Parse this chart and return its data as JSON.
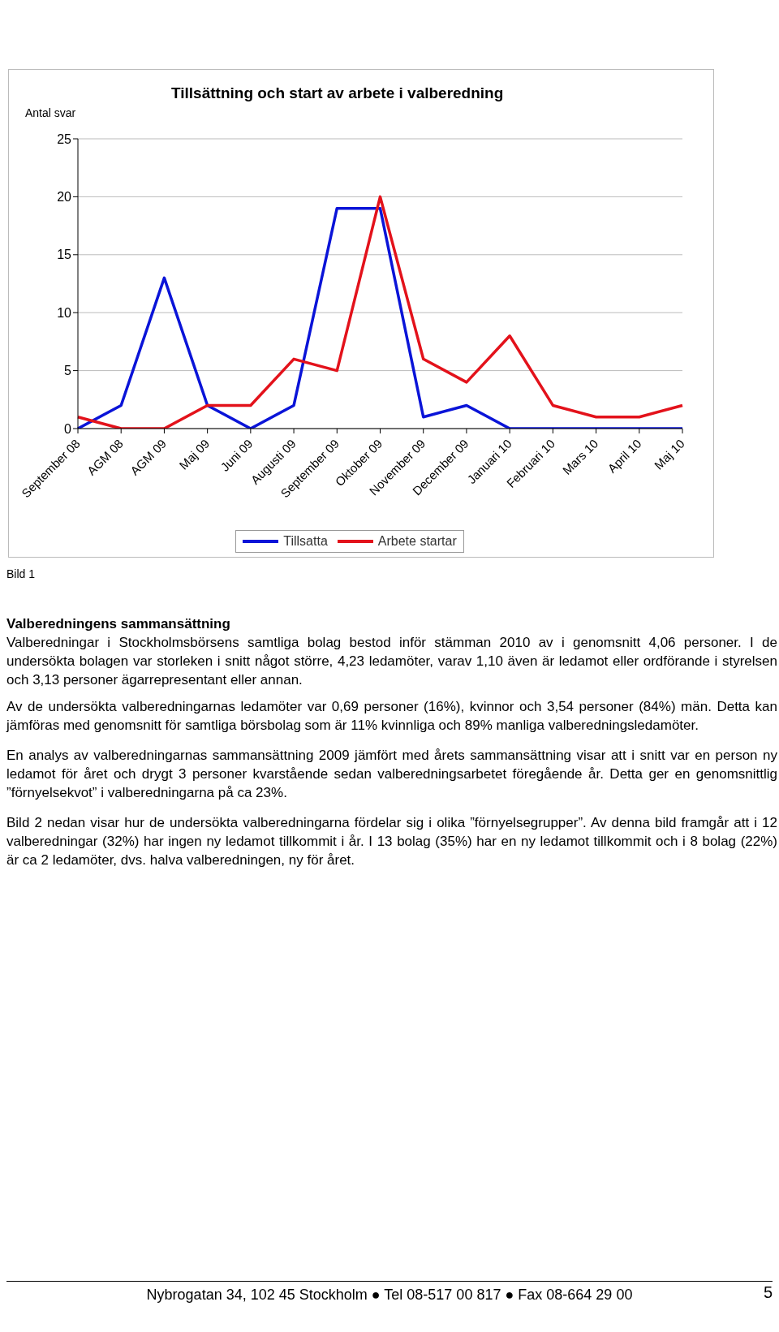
{
  "chart_data": {
    "type": "line",
    "title": "Tillsättning och start av arbete i valberedning",
    "ylabel": "Antal svar",
    "categories": [
      "September 08",
      "AGM 08",
      "AGM 09",
      "Maj 09",
      "Juni 09",
      "Augusti 09",
      "September 09",
      "Oktober 09",
      "November 09",
      "December 09",
      "Januari 10",
      "Februari 10",
      "Mars 10",
      "April 10",
      "Maj 10"
    ],
    "series": [
      {
        "name": "Tillsatta",
        "color": "#0a14d8",
        "values": [
          0,
          2,
          13,
          2,
          0,
          2,
          19,
          19,
          1,
          2,
          0,
          0,
          0,
          0,
          0
        ]
      },
      {
        "name": "Arbete startar",
        "color": "#e3121b",
        "values": [
          1,
          0,
          0,
          2,
          2,
          6,
          5,
          20,
          6,
          4,
          8,
          2,
          1,
          1,
          2
        ]
      }
    ],
    "ylim": [
      0,
      25
    ],
    "yticks": [
      0,
      5,
      10,
      15,
      20,
      25
    ],
    "grid": "y",
    "legend": "bottom",
    "marker": "none",
    "line_style": "solid",
    "annotations": [
      "Bild 1",
      "Valberedningens sammansättning",
      "Valberedningar i Stockholmsbörsens samtliga bolag bestod inför stämman 2010 av i genomsnitt 4,06 personer. I de undersökta bolagen var storleken i snitt något större, 4,23 ledamöter, varav 1,10 även är ledamot eller ordförande i styrelsen och 3,13 personer ägarrepresentant eller annan.",
      "Av de undersökta valberedningarnas ledamöter var 0,69 personer (16%), kvinnor och 3,54 personer (84%) män. Detta kan jämföras med genomsnitt för samtliga börsbolag som är 11% kvinnliga och 89% manliga valberedningsledamöter.",
      "En analys av valberedningarnas sammansättning 2009 jämfört med årets sammansättning visar att i snitt var en person ny ledamot för året och drygt 3 personer kvarstående sedan valberedningsarbetet föregående år. Detta ger en genomsnittlig ”förnyelsekvot” i valberedningarna på ca 23%.",
      "Bild 2 nedan visar hur de undersökta valberedningarna fördelar sig i olika ”förnyelsegrupper”. Av denna bild framgår att i 12 valberedningar (32%) har ingen ny ledamot tillkommit i år. I 13 bolag (35%) har en ny ledamot tillkommit och i 8 bolag (22%) är ca 2 ledamöter, dvs. halva valberedningen, ny för året.",
      "Nybrogatan 34, 102 45 Stockholm ● Tel 08-517 00 817 ● Fax 08-664 29 00",
      "5"
    ]
  }
}
